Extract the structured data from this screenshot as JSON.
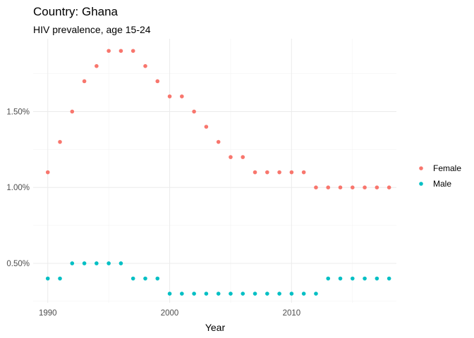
{
  "chart_data": {
    "type": "scatter",
    "title": "Country: Ghana",
    "subtitle": "HIV prevalence, age 15-24",
    "xlabel": "Year",
    "ylabel": "",
    "xlim": [
      1988.8,
      2018.6
    ],
    "ylim": [
      0.0024,
      0.0198
    ],
    "x_ticks": [
      1990,
      2000,
      2010
    ],
    "x_tick_labels": [
      "1990",
      "2000",
      "2010"
    ],
    "y_ticks": [
      0.005,
      0.01,
      0.015
    ],
    "y_tick_labels": [
      "0.50%",
      "1.00%",
      "1.50%"
    ],
    "grid": true,
    "legend_position": "right",
    "x": [
      1990,
      1991,
      1992,
      1993,
      1994,
      1995,
      1996,
      1997,
      1998,
      1999,
      2000,
      2001,
      2002,
      2003,
      2004,
      2005,
      2006,
      2007,
      2008,
      2009,
      2010,
      2011,
      2012,
      2013,
      2014,
      2015,
      2016,
      2017,
      2018
    ],
    "series": [
      {
        "name": "Female",
        "color": "#f8766d",
        "values": [
          0.011,
          0.013,
          0.015,
          0.017,
          0.018,
          0.019,
          0.019,
          0.019,
          0.018,
          0.017,
          0.016,
          0.016,
          0.015,
          0.014,
          0.013,
          0.012,
          0.012,
          0.011,
          0.011,
          0.011,
          0.011,
          0.011,
          0.01,
          0.01,
          0.01,
          0.01,
          0.01,
          0.01,
          0.01
        ]
      },
      {
        "name": "Male",
        "color": "#00bfc4",
        "values": [
          0.004,
          0.004,
          0.005,
          0.005,
          0.005,
          0.005,
          0.005,
          0.004,
          0.004,
          0.004,
          0.003,
          0.003,
          0.003,
          0.003,
          0.003,
          0.003,
          0.003,
          0.003,
          0.003,
          0.003,
          0.003,
          0.003,
          0.003,
          0.004,
          0.004,
          0.004,
          0.004,
          0.004,
          0.004
        ]
      }
    ]
  }
}
